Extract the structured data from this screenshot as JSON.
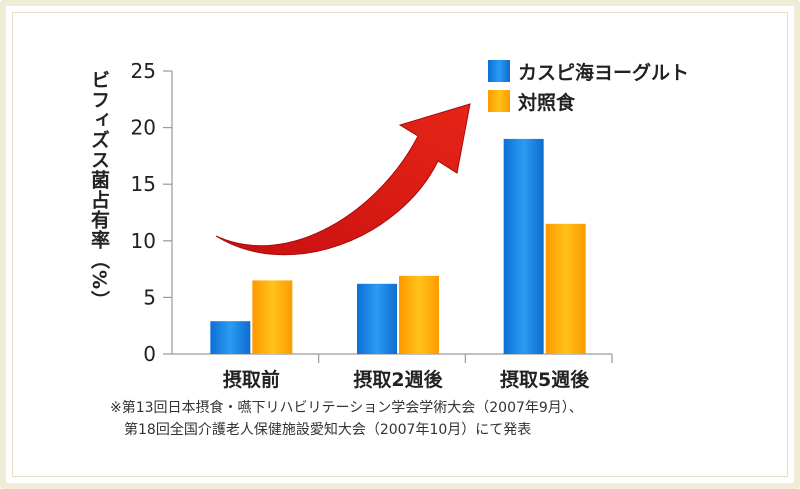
{
  "chart_data": {
    "type": "bar",
    "ylabel": "ビフィズス菌占有率（%）",
    "ylim": [
      0,
      25
    ],
    "yticks": [
      0,
      5,
      10,
      15,
      20,
      25
    ],
    "categories": [
      "摂取前",
      "摂取2週後",
      "摂取5週後"
    ],
    "series": [
      {
        "name": "カスピ海ヨーグルト",
        "values": [
          2.9,
          6.2,
          19.0
        ],
        "color": "#1e88e6"
      },
      {
        "name": "対照食",
        "values": [
          6.5,
          6.9,
          11.5
        ],
        "color": "#ffaa00"
      }
    ],
    "legend": "top-right",
    "grid": false,
    "annotation": "red curved arrow pointing upward to the right"
  },
  "footnote": {
    "line1": "※第13回日本摂食・嚥下リハビリテーション学会学術大会（2007年9月）、",
    "line2": "第18回全国介護老人保健施設愛知大会（2007年10月）にて発表"
  }
}
